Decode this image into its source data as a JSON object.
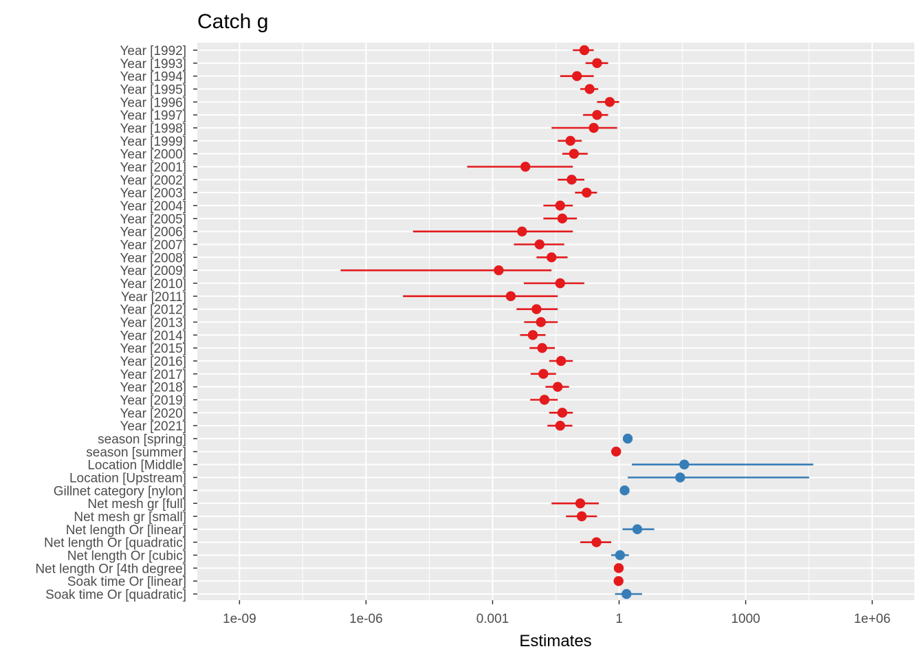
{
  "chart_data": {
    "type": "forest",
    "title": "Catch g",
    "xlabel": "Estimates",
    "x_scale": "log10",
    "xlim": [
      1e-10,
      10000000.0
    ],
    "x_ticks": [
      {
        "value": 1e-09,
        "label": "1e-09"
      },
      {
        "value": 1e-06,
        "label": "1e-06"
      },
      {
        "value": 0.001,
        "label": "0.001"
      },
      {
        "value": 1,
        "label": "1"
      },
      {
        "value": 1000,
        "label": "1000"
      },
      {
        "value": 1000000.0,
        "label": "1e+06"
      }
    ],
    "grid": true,
    "colors": {
      "negative": "#e41a1c",
      "positive": "#377eb8"
    },
    "terms": [
      {
        "label": "Year [1992]",
        "estimate": 0.15,
        "ci": [
          0.08,
          0.25
        ],
        "direction": "negative"
      },
      {
        "label": "Year [1993]",
        "estimate": 0.3,
        "ci": [
          0.16,
          0.55
        ],
        "direction": "negative"
      },
      {
        "label": "Year [1994]",
        "estimate": 0.1,
        "ci": [
          0.04,
          0.25
        ],
        "direction": "negative"
      },
      {
        "label": "Year [1995]",
        "estimate": 0.2,
        "ci": [
          0.12,
          0.32
        ],
        "direction": "negative"
      },
      {
        "label": "Year [1996]",
        "estimate": 0.6,
        "ci": [
          0.3,
          1.0
        ],
        "direction": "negative"
      },
      {
        "label": "Year [1997]",
        "estimate": 0.3,
        "ci": [
          0.14,
          0.55
        ],
        "direction": "negative"
      },
      {
        "label": "Year [1998]",
        "estimate": 0.25,
        "ci": [
          0.025,
          0.9
        ],
        "direction": "negative"
      },
      {
        "label": "Year [1999]",
        "estimate": 0.07,
        "ci": [
          0.035,
          0.13
        ],
        "direction": "negative"
      },
      {
        "label": "Year [2000]",
        "estimate": 0.085,
        "ci": [
          0.045,
          0.18
        ],
        "direction": "negative"
      },
      {
        "label": "Year [2001]",
        "estimate": 0.006,
        "ci": [
          0.00025,
          0.08
        ],
        "direction": "negative"
      },
      {
        "label": "Year [2002]",
        "estimate": 0.075,
        "ci": [
          0.035,
          0.15
        ],
        "direction": "negative"
      },
      {
        "label": "Year [2003]",
        "estimate": 0.17,
        "ci": [
          0.09,
          0.3
        ],
        "direction": "negative"
      },
      {
        "label": "Year [2004]",
        "estimate": 0.04,
        "ci": [
          0.016,
          0.08
        ],
        "direction": "negative"
      },
      {
        "label": "Year [2005]",
        "estimate": 0.045,
        "ci": [
          0.016,
          0.1
        ],
        "direction": "negative"
      },
      {
        "label": "Year [2006]",
        "estimate": 0.005,
        "ci": [
          1.3e-05,
          0.08
        ],
        "direction": "negative"
      },
      {
        "label": "Year [2007]",
        "estimate": 0.013,
        "ci": [
          0.0032,
          0.05
        ],
        "direction": "negative"
      },
      {
        "label": "Year [2008]",
        "estimate": 0.025,
        "ci": [
          0.011,
          0.06
        ],
        "direction": "negative"
      },
      {
        "label": "Year [2009]",
        "estimate": 0.0014,
        "ci": [
          2.5e-07,
          0.025
        ],
        "direction": "negative"
      },
      {
        "label": "Year [2010]",
        "estimate": 0.04,
        "ci": [
          0.0055,
          0.15
        ],
        "direction": "negative"
      },
      {
        "label": "Year [2011]",
        "estimate": 0.0027,
        "ci": [
          7.5e-06,
          0.035
        ],
        "direction": "negative"
      },
      {
        "label": "Year [2012]",
        "estimate": 0.011,
        "ci": [
          0.0037,
          0.035
        ],
        "direction": "negative"
      },
      {
        "label": "Year [2013]",
        "estimate": 0.014,
        "ci": [
          0.0056,
          0.035
        ],
        "direction": "negative"
      },
      {
        "label": "Year [2014]",
        "estimate": 0.009,
        "ci": [
          0.0045,
          0.018
        ],
        "direction": "negative"
      },
      {
        "label": "Year [2015]",
        "estimate": 0.015,
        "ci": [
          0.0075,
          0.03
        ],
        "direction": "negative"
      },
      {
        "label": "Year [2016]",
        "estimate": 0.042,
        "ci": [
          0.022,
          0.08
        ],
        "direction": "negative"
      },
      {
        "label": "Year [2017]",
        "estimate": 0.016,
        "ci": [
          0.008,
          0.032
        ],
        "direction": "negative"
      },
      {
        "label": "Year [2018]",
        "estimate": 0.035,
        "ci": [
          0.018,
          0.065
        ],
        "direction": "negative"
      },
      {
        "label": "Year [2019]",
        "estimate": 0.017,
        "ci": [
          0.0078,
          0.035
        ],
        "direction": "negative"
      },
      {
        "label": "Year [2020]",
        "estimate": 0.045,
        "ci": [
          0.022,
          0.08
        ],
        "direction": "negative"
      },
      {
        "label": "Year [2021]",
        "estimate": 0.04,
        "ci": [
          0.02,
          0.078
        ],
        "direction": "negative"
      },
      {
        "label": "season [spring]",
        "estimate": 1.6,
        "ci": [
          1.4,
          1.8
        ],
        "direction": "positive"
      },
      {
        "label": "season [summer]",
        "estimate": 0.85,
        "ci": [
          0.75,
          0.95
        ],
        "direction": "negative"
      },
      {
        "label": "Location [Middle]",
        "estimate": 35,
        "ci": [
          2.0,
          40000
        ],
        "direction": "positive"
      },
      {
        "label": "Location [Upstream]",
        "estimate": 28,
        "ci": [
          1.6,
          32000
        ],
        "direction": "positive"
      },
      {
        "label": "Gillnet category [nylon]",
        "estimate": 1.35,
        "ci": [
          1.15,
          1.55
        ],
        "direction": "positive"
      },
      {
        "label": "Net mesh gr [full]",
        "estimate": 0.12,
        "ci": [
          0.025,
          0.33
        ],
        "direction": "negative"
      },
      {
        "label": "Net mesh gr [small]",
        "estimate": 0.13,
        "ci": [
          0.055,
          0.3
        ],
        "direction": "negative"
      },
      {
        "label": "Net length Or [linear]",
        "estimate": 2.7,
        "ci": [
          1.2,
          6.8
        ],
        "direction": "positive"
      },
      {
        "label": "Net length Or [quadratic]",
        "estimate": 0.29,
        "ci": [
          0.12,
          0.65
        ],
        "direction": "negative"
      },
      {
        "label": "Net length Or [cubic]",
        "estimate": 1.05,
        "ci": [
          0.65,
          1.7
        ],
        "direction": "positive"
      },
      {
        "label": "Net length Or [4th degree]",
        "estimate": 0.98,
        "ci": [
          0.88,
          1.08
        ],
        "direction": "negative"
      },
      {
        "label": "Soak time Or [linear]",
        "estimate": 0.97,
        "ci": [
          0.88,
          1.06
        ],
        "direction": "negative"
      },
      {
        "label": "Soak time Or [quadratic]",
        "estimate": 1.5,
        "ci": [
          0.8,
          3.5
        ],
        "direction": "positive"
      }
    ]
  }
}
